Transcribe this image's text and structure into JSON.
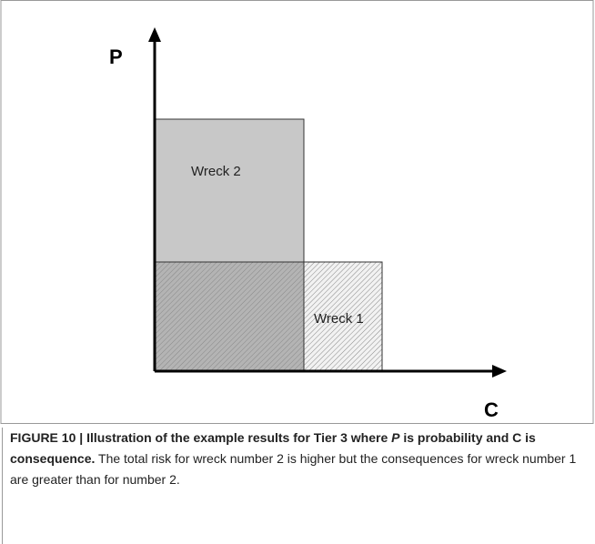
{
  "figure": {
    "y_axis_label": "P",
    "x_axis_label": "C",
    "regions": [
      {
        "label": "Wreck 2"
      },
      {
        "label": "Wreck 1"
      }
    ]
  },
  "caption": {
    "label": "FIGURE 10 |",
    "title_start": "Illustration of the example results for Tier 3 where",
    "title_italic": "P",
    "title_end": "is probability and C is consequence.",
    "text": "The total risk for wreck number 2 is higher but the consequences for wreck number 1 are greater than for number 2."
  }
}
